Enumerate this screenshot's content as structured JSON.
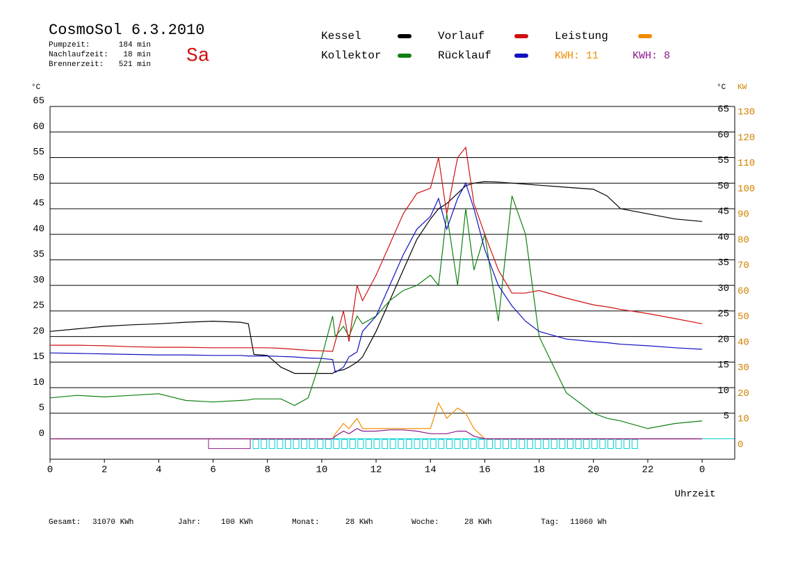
{
  "chart_data": {
    "type": "line",
    "title": "CosmoSol 6.3.2010",
    "day": "Sa",
    "run_times": [
      {
        "label": "Pumpzeit:",
        "value": "184 min"
      },
      {
        "label": "Nachlaufzeit:",
        "value": "18 min"
      },
      {
        "label": "Brennerzeit:",
        "value": "521 min"
      }
    ],
    "kwh_labels": [
      {
        "text": "KWH: 11",
        "color": "#f08c00"
      },
      {
        "text": "KWH: 8",
        "color": "#8b1a8b"
      }
    ],
    "totals": [
      {
        "label": "Gesamt:",
        "value": "31070 KWh"
      },
      {
        "label": "Jahr:",
        "value": "100 KWh"
      },
      {
        "label": "Monat:",
        "value": "28 KWh"
      },
      {
        "label": "Woche:",
        "value": "28 KWh"
      },
      {
        "label": "Tag:",
        "value": "11060 Wh"
      }
    ],
    "ylabel": "°C",
    "y2label": "KW",
    "xlabel": "Uhrzeit",
    "x": [
      0,
      1,
      2,
      3,
      4,
      5,
      6,
      7,
      7.3,
      7.5,
      8,
      8.5,
      9,
      9.5,
      10,
      10.4,
      10.5,
      10.8,
      11,
      11.3,
      11.5,
      12,
      12.5,
      13,
      13.5,
      14,
      14.3,
      14.6,
      15,
      15.3,
      15.6,
      16,
      16.5,
      17,
      17.5,
      18,
      19,
      20,
      20.5,
      21,
      22,
      23,
      24
    ],
    "xlim": [
      0,
      25.2
    ],
    "xticks": [
      0,
      2,
      4,
      6,
      8,
      10,
      12,
      14,
      16,
      18,
      20,
      22,
      {
        "value": 24,
        "label": "0"
      }
    ],
    "ylim": [
      -4,
      65
    ],
    "yticks": [
      0,
      5,
      10,
      15,
      20,
      25,
      30,
      35,
      40,
      45,
      50,
      55,
      60,
      65
    ],
    "yticks_right": [
      5,
      10,
      15,
      20,
      25,
      30,
      35,
      40,
      45,
      50,
      55,
      60,
      65
    ],
    "y2lim": [
      -8,
      130
    ],
    "y2ticks": [
      0,
      10,
      20,
      30,
      40,
      50,
      60,
      70,
      80,
      90,
      100,
      110,
      120,
      130
    ],
    "grid": true,
    "series": [
      {
        "name": "Kessel",
        "color": "#000000",
        "values": [
          21,
          21.5,
          22,
          22.3,
          22.5,
          22.8,
          23,
          22.8,
          22.5,
          16.5,
          16.3,
          14,
          12.8,
          12.8,
          12.8,
          12.8,
          13.2,
          13.5,
          14,
          15,
          16,
          21,
          27,
          33,
          39,
          43,
          45,
          46,
          48,
          49.5,
          50,
          50.3,
          50.2,
          50,
          49.8,
          49.6,
          49.2,
          48.8,
          47.5,
          45,
          44,
          43,
          42.5
        ]
      },
      {
        "name": "Kollektor",
        "color": "#108010",
        "values": [
          8,
          8.5,
          8.2,
          8.5,
          8.8,
          7.5,
          7.2,
          7.5,
          7.6,
          7.8,
          7.8,
          7.8,
          6.5,
          8,
          16,
          24,
          20,
          22,
          20,
          24,
          22.5,
          24,
          27,
          29,
          30,
          32,
          30,
          44,
          30,
          45,
          33,
          40,
          23,
          47.5,
          40,
          20,
          9,
          5,
          4,
          3.5,
          2,
          3,
          3.5
        ]
      },
      {
        "name": "Vorlauf",
        "color": "#d01010",
        "values": [
          18.3,
          18.3,
          18.2,
          18,
          17.9,
          17.9,
          17.8,
          17.8,
          17.8,
          17.8,
          17.8,
          17.7,
          17.5,
          17.3,
          17.2,
          17.1,
          19,
          25,
          19,
          30,
          27,
          32,
          38,
          44,
          48,
          49,
          55,
          44,
          55,
          57,
          46,
          40,
          33,
          28.5,
          28.5,
          29,
          27.5,
          26.2,
          25.8,
          25.3,
          24.5,
          23.5,
          22.5
        ]
      },
      {
        "name": "Rücklauf",
        "color": "#1010c0",
        "values": [
          16.8,
          16.7,
          16.6,
          16.5,
          16.4,
          16.4,
          16.3,
          16.3,
          16.2,
          16.2,
          16.2,
          16.1,
          16,
          15.8,
          15.7,
          15.5,
          13,
          14,
          16,
          17,
          21,
          24,
          30,
          36,
          41,
          43.5,
          47,
          41,
          47,
          50,
          45,
          37,
          30,
          26,
          23,
          21,
          19.5,
          19,
          18.8,
          18.5,
          18.2,
          17.8,
          17.5
        ]
      },
      {
        "name": "Leistung",
        "color": "#f08c00",
        "axis": "y2",
        "values": [
          0,
          0,
          0,
          0,
          0,
          0,
          0,
          0,
          0,
          0,
          0,
          0,
          0,
          0,
          0,
          0,
          2,
          6,
          4,
          8,
          4,
          4,
          4,
          4,
          4,
          4,
          14,
          8,
          12,
          10,
          4,
          0,
          0,
          0,
          0,
          0,
          0,
          0,
          0,
          0,
          0,
          0,
          0
        ]
      },
      {
        "color": "#8b1a8b",
        "axis": "y2",
        "values": [
          0,
          0,
          0,
          0,
          0,
          0,
          0,
          0,
          0,
          0,
          0,
          0,
          0,
          0,
          0,
          0,
          1,
          3,
          2,
          4,
          3,
          3,
          3.5,
          3.5,
          3,
          2,
          2,
          2,
          3,
          3,
          1,
          0,
          0,
          0,
          0,
          0,
          0,
          0,
          0,
          0,
          0,
          0,
          0
        ]
      }
    ]
  }
}
